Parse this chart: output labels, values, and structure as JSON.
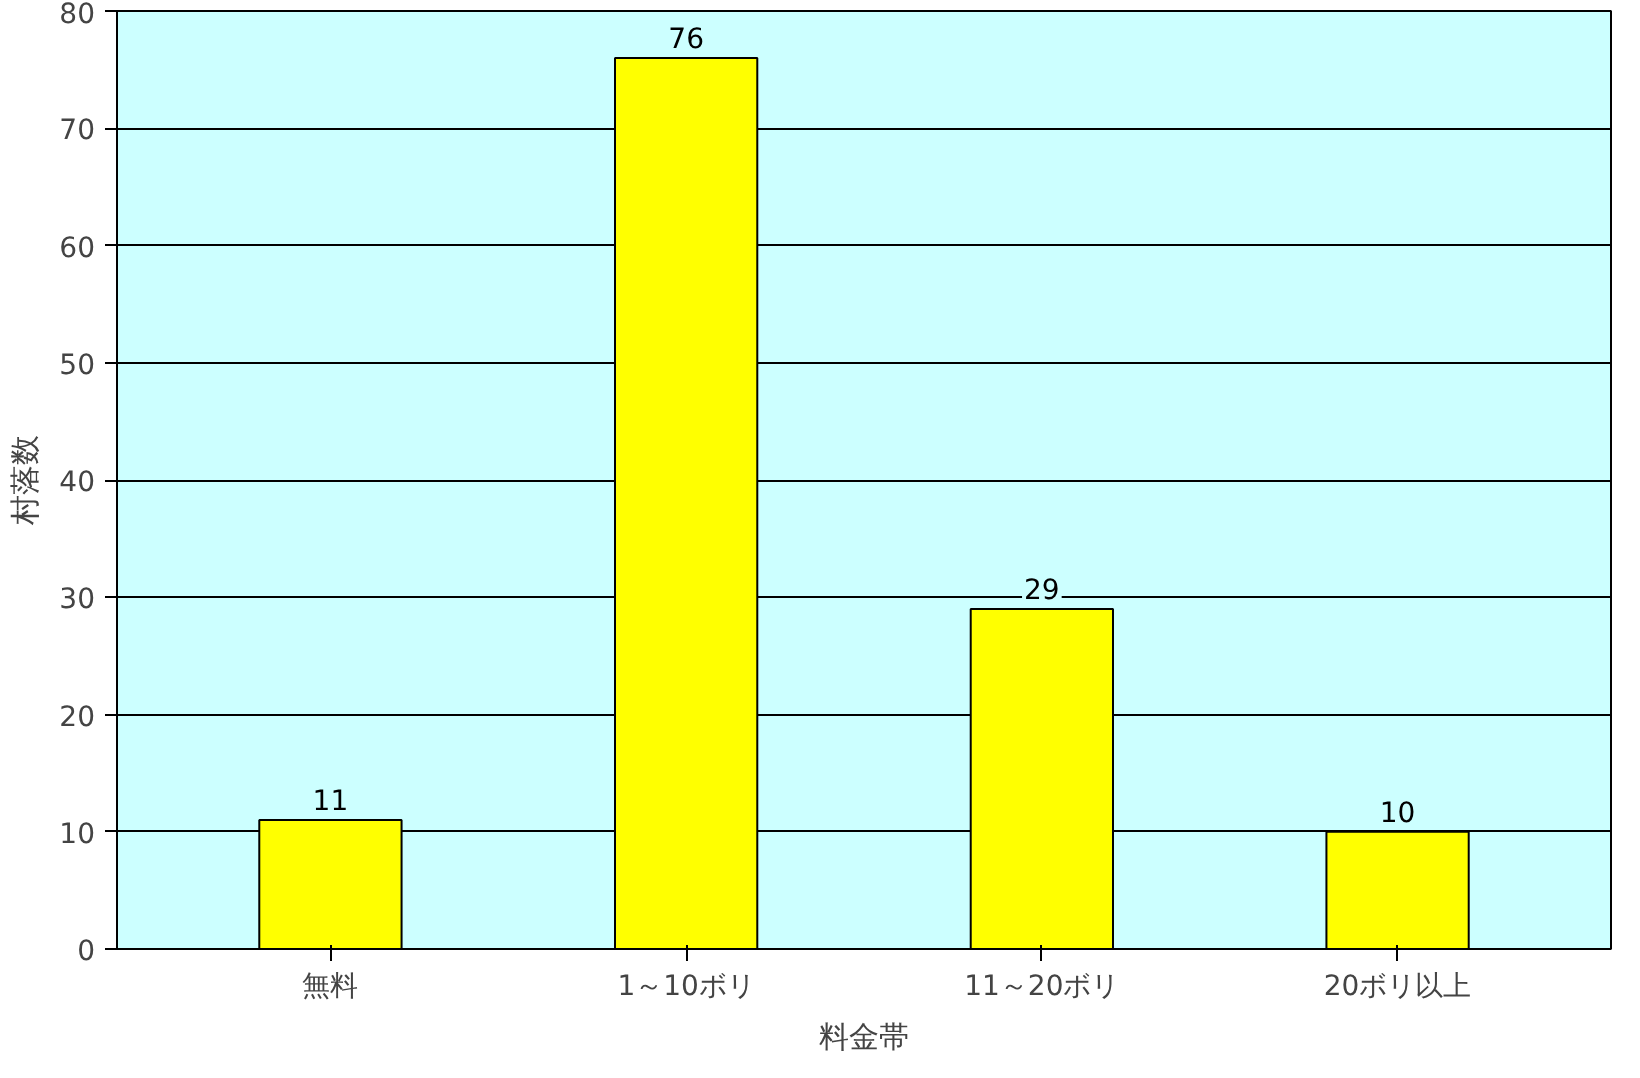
{
  "chart_data": {
    "type": "bar",
    "xlabel": "料金帯",
    "ylabel": "村落数",
    "categories": [
      "無料",
      "1～10ボリ",
      "11～20ボリ",
      "20ボリ以上"
    ],
    "values": [
      11,
      76,
      29,
      10
    ],
    "color": "#ffff00",
    "ylim": [
      0,
      80
    ],
    "yticks": [
      0,
      10,
      20,
      30,
      40,
      50,
      60,
      70,
      80
    ],
    "grid": "y",
    "data_labels": true
  }
}
